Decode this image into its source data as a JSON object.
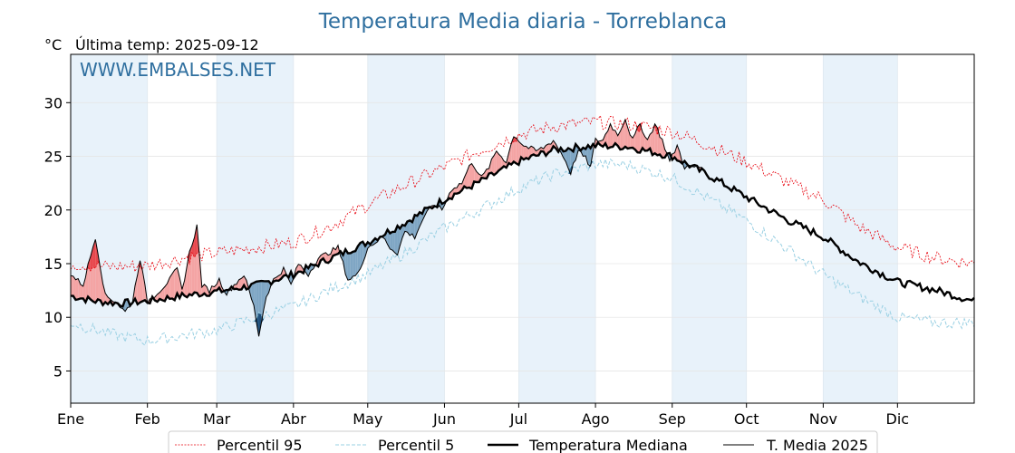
{
  "chart_data": {
    "type": "line",
    "title": "Temperatura Media diaria - Torreblanca",
    "unit": "°C",
    "subtitle": "Última temp: 2025-09-12",
    "watermark": "WWW.EMBALSES.NET",
    "x_domain": [
      0,
      365
    ],
    "ylim": [
      2,
      34.5
    ],
    "y_ticks": [
      5,
      10,
      15,
      20,
      25,
      30
    ],
    "month_labels": [
      "Ene",
      "Feb",
      "Mar",
      "Abr",
      "May",
      "Jun",
      "Jul",
      "Ago",
      "Sep",
      "Oct",
      "Nov",
      "Dic"
    ],
    "month_starts": [
      0,
      31,
      59,
      90,
      120,
      151,
      181,
      212,
      243,
      273,
      304,
      334
    ],
    "grid": true,
    "shaded_months": [
      0,
      2,
      4,
      6,
      8,
      10
    ],
    "legend_position": "bottom",
    "legend": [
      "Percentil 95",
      "Percentil 5",
      "Temperatura Mediana",
      "T. Media 2025"
    ],
    "colors": {
      "p95": "#e8000b",
      "p5": "#9ad0e3",
      "median": "#000000",
      "current": "#000000",
      "warm_fill": "#f4a4a4",
      "warm_extreme_fill": "#e8484e",
      "cold_fill": "#7fa6c4",
      "cold_extreme_fill": "#1f4f7a",
      "band": "#e8f2fa",
      "title": "#2f6f9f"
    },
    "median_anchors": [
      [
        0,
        12.0
      ],
      [
        10,
        11.5
      ],
      [
        20,
        11.3
      ],
      [
        31,
        11.5
      ],
      [
        45,
        12.0
      ],
      [
        59,
        12.4
      ],
      [
        75,
        13.0
      ],
      [
        90,
        14.0
      ],
      [
        105,
        15.5
      ],
      [
        120,
        17.0
      ],
      [
        135,
        18.8
      ],
      [
        151,
        21.0
      ],
      [
        165,
        22.6
      ],
      [
        181,
        24.5
      ],
      [
        195,
        25.6
      ],
      [
        212,
        26.0
      ],
      [
        225,
        25.9
      ],
      [
        243,
        25.0
      ],
      [
        258,
        23.2
      ],
      [
        273,
        21.2
      ],
      [
        290,
        19.0
      ],
      [
        304,
        17.5
      ],
      [
        318,
        15.2
      ],
      [
        334,
        13.3
      ],
      [
        350,
        12.5
      ],
      [
        365,
        11.5
      ]
    ],
    "p95_anchors": [
      [
        0,
        15.0
      ],
      [
        15,
        14.7
      ],
      [
        31,
        14.8
      ],
      [
        45,
        15.5
      ],
      [
        59,
        16.0
      ],
      [
        75,
        16.5
      ],
      [
        90,
        17.0
      ],
      [
        105,
        18.5
      ],
      [
        120,
        20.5
      ],
      [
        135,
        22.3
      ],
      [
        151,
        24.0
      ],
      [
        165,
        25.5
      ],
      [
        181,
        27.0
      ],
      [
        195,
        27.8
      ],
      [
        212,
        28.2
      ],
      [
        225,
        28.0
      ],
      [
        243,
        27.3
      ],
      [
        258,
        26.0
      ],
      [
        273,
        24.5
      ],
      [
        290,
        22.5
      ],
      [
        304,
        21.0
      ],
      [
        318,
        18.5
      ],
      [
        334,
        16.5
      ],
      [
        350,
        15.5
      ],
      [
        365,
        15.0
      ]
    ],
    "p5_anchors": [
      [
        0,
        9.5
      ],
      [
        15,
        8.5
      ],
      [
        31,
        7.8
      ],
      [
        45,
        8.3
      ],
      [
        59,
        8.8
      ],
      [
        75,
        10.0
      ],
      [
        90,
        11.0
      ],
      [
        105,
        12.6
      ],
      [
        120,
        14.0
      ],
      [
        135,
        16.0
      ],
      [
        151,
        18.3
      ],
      [
        165,
        20.0
      ],
      [
        181,
        22.0
      ],
      [
        195,
        23.3
      ],
      [
        212,
        24.3
      ],
      [
        225,
        24.2
      ],
      [
        243,
        23.0
      ],
      [
        258,
        21.0
      ],
      [
        273,
        19.0
      ],
      [
        290,
        16.3
      ],
      [
        304,
        14.0
      ],
      [
        318,
        12.0
      ],
      [
        334,
        10.0
      ],
      [
        350,
        9.5
      ],
      [
        365,
        9.5
      ]
    ],
    "current_anchors": [
      [
        0,
        14.0
      ],
      [
        5,
        13.0
      ],
      [
        10,
        17.5
      ],
      [
        14,
        12.0
      ],
      [
        18,
        11.5
      ],
      [
        22,
        10.5
      ],
      [
        25,
        11.5
      ],
      [
        28,
        15.5
      ],
      [
        31,
        11.5
      ],
      [
        36,
        12.5
      ],
      [
        40,
        13.5
      ],
      [
        43,
        14.5
      ],
      [
        45,
        12.5
      ],
      [
        48,
        16.0
      ],
      [
        51,
        18.5
      ],
      [
        53,
        13.0
      ],
      [
        56,
        12.5
      ],
      [
        60,
        13.5
      ],
      [
        63,
        12.2
      ],
      [
        66,
        13.0
      ],
      [
        70,
        14.0
      ],
      [
        74,
        11.0
      ],
      [
        76,
        8.3
      ],
      [
        79,
        12.0
      ],
      [
        82,
        13.5
      ],
      [
        86,
        14.5
      ],
      [
        89,
        13.0
      ],
      [
        92,
        15.0
      ],
      [
        96,
        14.0
      ],
      [
        100,
        15.5
      ],
      [
        104,
        16.0
      ],
      [
        108,
        16.5
      ],
      [
        112,
        13.5
      ],
      [
        116,
        14.0
      ],
      [
        120,
        16.5
      ],
      [
        123,
        17.0
      ],
      [
        126,
        17.5
      ],
      [
        129,
        16.5
      ],
      [
        132,
        16.0
      ],
      [
        135,
        18.0
      ],
      [
        139,
        17.5
      ],
      [
        143,
        19.5
      ],
      [
        147,
        20.5
      ],
      [
        150,
        20.0
      ],
      [
        154,
        22.0
      ],
      [
        158,
        22.5
      ],
      [
        162,
        24.5
      ],
      [
        166,
        23.0
      ],
      [
        169,
        24.0
      ],
      [
        172,
        25.5
      ],
      [
        176,
        24.5
      ],
      [
        179,
        27.0
      ],
      [
        183,
        26.0
      ],
      [
        188,
        25.5
      ],
      [
        191,
        25.8
      ],
      [
        195,
        26.5
      ],
      [
        199,
        25.0
      ],
      [
        202,
        23.5
      ],
      [
        205,
        25.5
      ],
      [
        208,
        24.8
      ],
      [
        210,
        24.0
      ],
      [
        212,
        26.5
      ],
      [
        215,
        26.5
      ],
      [
        218,
        28.0
      ],
      [
        221,
        27.0
      ],
      [
        224,
        28.5
      ],
      [
        227,
        26.5
      ],
      [
        230,
        28.0
      ],
      [
        233,
        26.5
      ],
      [
        236,
        28.0
      ],
      [
        239,
        26.5
      ],
      [
        242,
        24.5
      ],
      [
        245,
        26.0
      ],
      [
        248,
        24.0
      ]
    ],
    "current_end_day": 255
  }
}
